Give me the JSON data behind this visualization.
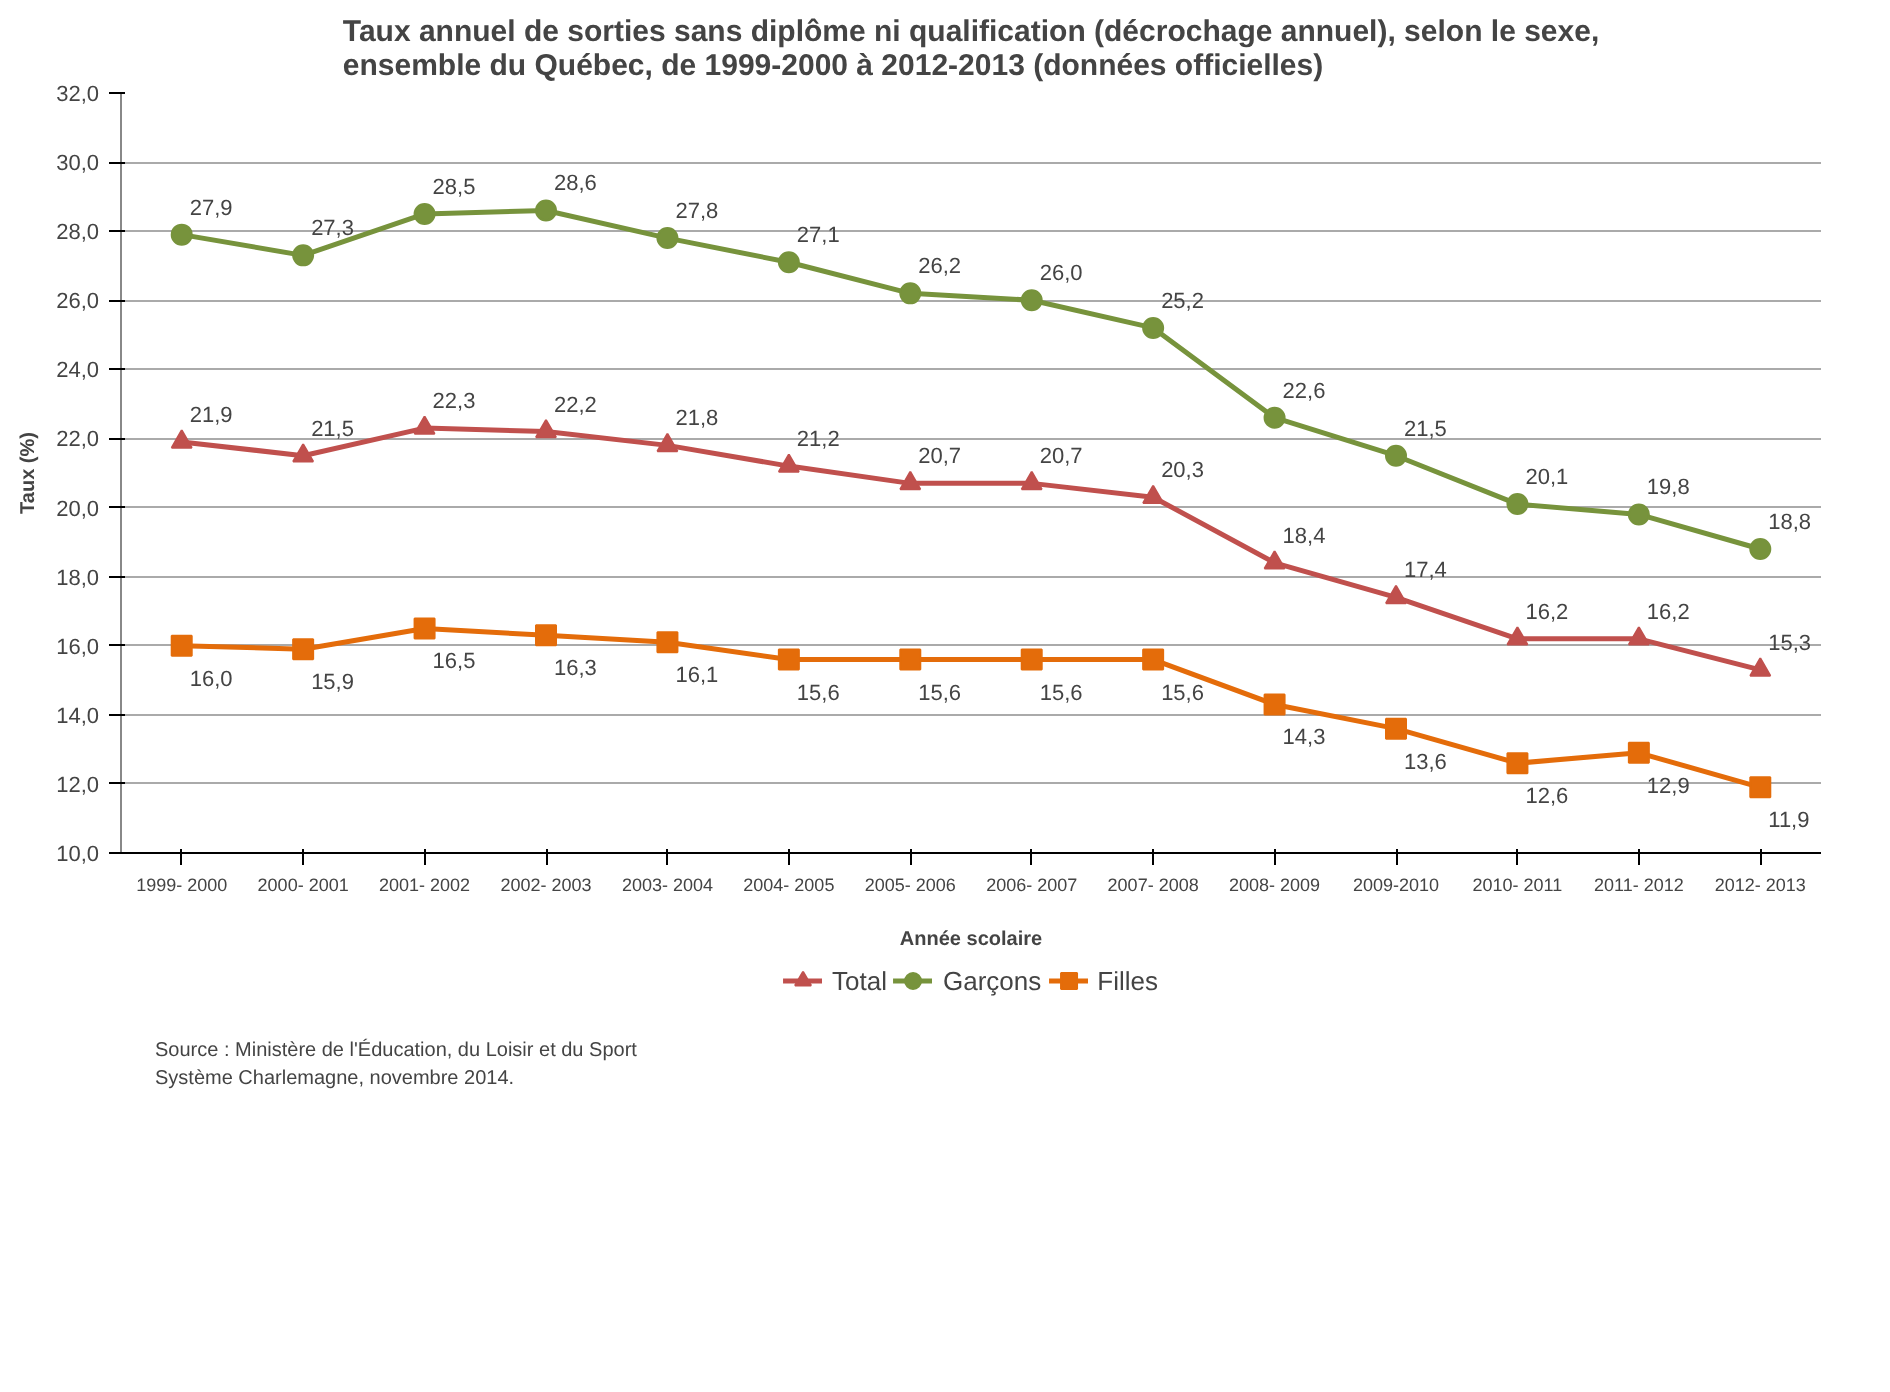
{
  "chart_data": {
    "type": "line",
    "title": "Taux annuel de sorties sans diplôme ni qualification (décrochage annuel), selon le sexe,\nensemble du Québec, de 1999-2000 à 2012-2013  (données officielles)",
    "xlabel": "Année scolaire",
    "ylabel": "Taux (%)",
    "categories": [
      "1999- 2000",
      "2000- 2001",
      "2001- 2002",
      "2002- 2003",
      "2003- 2004",
      "2004- 2005",
      "2005- 2006",
      "2006- 2007",
      "2007- 2008",
      "2008- 2009",
      "2009-2010",
      "2010- 2011",
      "2011- 2012",
      "2012- 2013"
    ],
    "series": [
      {
        "name": "Total",
        "color": "#c0504d",
        "marker": "triangle",
        "values": [
          21.9,
          21.5,
          22.3,
          22.2,
          21.8,
          21.2,
          20.7,
          20.7,
          20.3,
          18.4,
          17.4,
          16.2,
          16.2,
          15.3
        ],
        "value_labels": [
          "21,9",
          "21,5",
          "22,3",
          "22,2",
          "21,8",
          "21,2",
          "20,7",
          "20,7",
          "20,3",
          "18,4",
          "17,4",
          "16,2",
          "16,2",
          "15,3"
        ]
      },
      {
        "name": "Garçons",
        "color": "#77933c",
        "marker": "circle",
        "values": [
          27.9,
          27.3,
          28.5,
          28.6,
          27.8,
          27.1,
          26.2,
          26.0,
          25.2,
          22.6,
          21.5,
          20.1,
          19.8,
          18.8
        ],
        "value_labels": [
          "27,9",
          "27,3",
          "28,5",
          "28,6",
          "27,8",
          "27,1",
          "26,2",
          "26,0",
          "25,2",
          "22,6",
          "21,5",
          "20,1",
          "19,8",
          "18,8"
        ]
      },
      {
        "name": "Filles",
        "color": "#e46c0a",
        "marker": "square",
        "values": [
          16.0,
          15.9,
          16.5,
          16.3,
          16.1,
          15.6,
          15.6,
          15.6,
          15.6,
          14.3,
          13.6,
          12.6,
          12.9,
          11.9
        ],
        "value_labels": [
          "16,0",
          "15,9",
          "16,5",
          "16,3",
          "16,1",
          "15,6",
          "15,6",
          "15,6",
          "15,6",
          "14,3",
          "13,6",
          "12,6",
          "12,9",
          "11,9"
        ]
      }
    ],
    "ylim": [
      10,
      32
    ],
    "yticks": [
      {
        "value": 10,
        "label": "10,0"
      },
      {
        "value": 12,
        "label": "12,0"
      },
      {
        "value": 14,
        "label": "14,0"
      },
      {
        "value": 16,
        "label": "16,0"
      },
      {
        "value": 18,
        "label": "18,0"
      },
      {
        "value": 20,
        "label": "20,0"
      },
      {
        "value": 22,
        "label": "22,0"
      },
      {
        "value": 24,
        "label": "24,0"
      },
      {
        "value": 26,
        "label": "26,0"
      },
      {
        "value": 28,
        "label": "28,0"
      },
      {
        "value": 30,
        "label": "30,0"
      },
      {
        "value": 32,
        "label": "32,0"
      }
    ],
    "grid": "y",
    "legend": "bottom",
    "line_style": "solid",
    "annotations": [
      "Source :  Ministère de l'Éducation, du Loisir et du Sport",
      "Système Charlemagne, novembre 2014."
    ]
  }
}
